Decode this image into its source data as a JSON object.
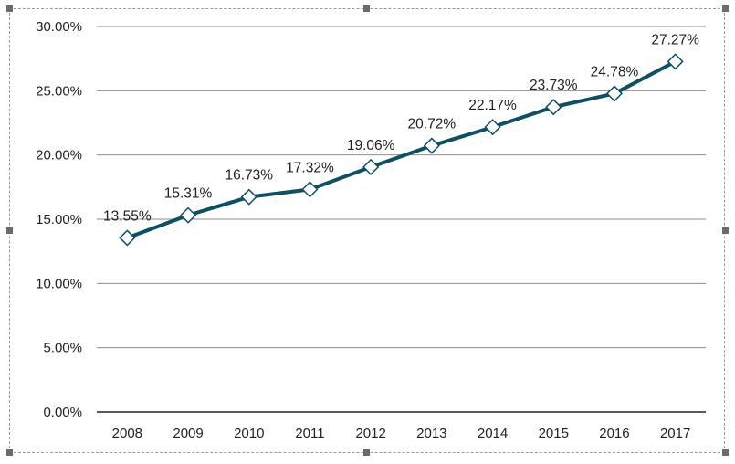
{
  "chart_data": {
    "type": "line",
    "categories": [
      "2008",
      "2009",
      "2010",
      "2011",
      "2012",
      "2013",
      "2014",
      "2015",
      "2016",
      "2017"
    ],
    "values": [
      13.55,
      15.31,
      16.73,
      17.32,
      19.06,
      20.72,
      22.17,
      23.73,
      24.78,
      27.27
    ],
    "data_labels": [
      "13.55%",
      "15.31%",
      "16.73%",
      "17.32%",
      "19.06%",
      "20.72%",
      "22.17%",
      "23.73%",
      "24.78%",
      "27.27%"
    ],
    "y_ticks": [
      "0.00%",
      "5.00%",
      "10.00%",
      "15.00%",
      "20.00%",
      "25.00%",
      "30.00%"
    ],
    "ylim": [
      0,
      30
    ],
    "grid": true,
    "legend": "none",
    "marker": "diamond",
    "line_color": "#0d4f63",
    "grid_color": "#8c8c8c"
  }
}
